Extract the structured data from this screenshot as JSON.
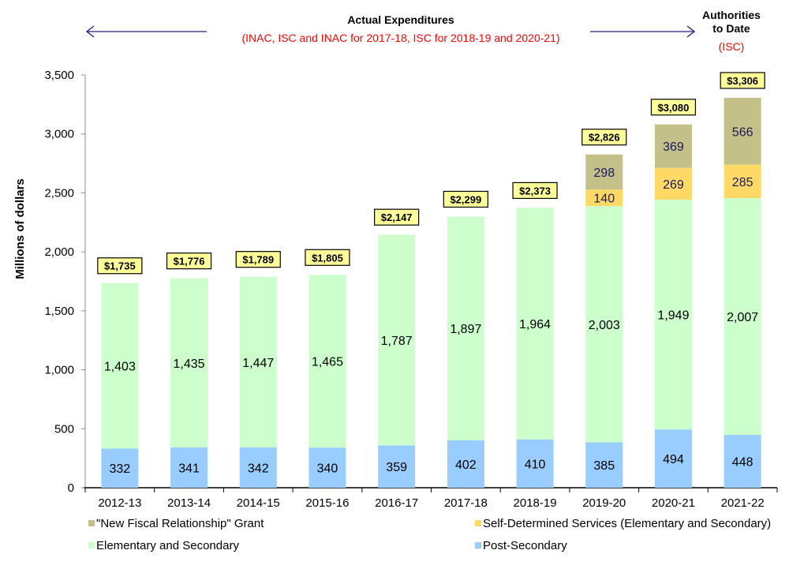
{
  "chart_data": {
    "type": "bar",
    "stacked": true,
    "title": "",
    "xlabel": "",
    "ylabel": "Millions of dollars",
    "ylim": [
      0,
      3500
    ],
    "yticks": [
      0,
      500,
      1000,
      1500,
      2000,
      2500,
      3000,
      3500
    ],
    "ytick_labels": [
      "0",
      "500",
      "1,000",
      "1,500",
      "2,000",
      "2,500",
      "3,000",
      "3,500"
    ],
    "grid": false,
    "legend_position": "bottom",
    "categories": [
      "2012-13",
      "2013-14",
      "2014-15",
      "2015-16",
      "2016-17",
      "2017-18",
      "2018-19",
      "2019-20",
      "2020-21",
      "2021-22"
    ],
    "series": [
      {
        "name": "Post-Secondary",
        "color": "#99CCFF",
        "values": [
          332,
          341,
          342,
          340,
          359,
          402,
          410,
          385,
          494,
          448
        ],
        "labels": [
          "332",
          "341",
          "342",
          "340",
          "359",
          "402",
          "410",
          "385",
          "494",
          "448"
        ]
      },
      {
        "name": "Elementary and Secondary",
        "color": "#CCFFCC",
        "values": [
          1403,
          1435,
          1447,
          1465,
          1787,
          1897,
          1964,
          2003,
          1949,
          2007
        ],
        "labels": [
          "1,403",
          "1,435",
          "1,447",
          "1,465",
          "1,787",
          "1,897",
          "1,964",
          "2,003",
          "1,949",
          "2,007"
        ]
      },
      {
        "name": "Self-Determined Services (Elementary and Secondary)",
        "color": "#FFD966",
        "values": [
          0,
          0,
          0,
          0,
          0,
          0,
          0,
          140,
          269,
          285
        ],
        "labels": [
          "",
          "",
          "",
          "",
          "",
          "",
          "",
          "140",
          "269",
          "285"
        ]
      },
      {
        "name": "\"New Fiscal Relationship\" Grant",
        "color": "#C4C08A",
        "values": [
          0,
          0,
          0,
          0,
          0,
          0,
          0,
          298,
          369,
          566
        ],
        "labels": [
          "",
          "",
          "",
          "",
          "",
          "",
          "",
          "298",
          "369",
          "566"
        ]
      }
    ],
    "totals": [
      1735,
      1776,
      1789,
      1805,
      2147,
      2299,
      2373,
      2826,
      3080,
      3306
    ],
    "total_labels": [
      "$1,735",
      "$1,776",
      "$1,789",
      "$1,805",
      "$2,147",
      "$2,299",
      "$2,373",
      "$2,826",
      "$3,080",
      "$3,306"
    ],
    "total_box_color": "#FFFF99",
    "legend": [
      {
        "name": "\"New Fiscal Relationship\" Grant",
        "color": "#C4C08A"
      },
      {
        "name": "Self-Determined Services (Elementary and Secondary)",
        "color": "#FFD966"
      },
      {
        "name": "Elementary and Secondary",
        "color": "#CCFFCC"
      },
      {
        "name": "Post-Secondary",
        "color": "#99CCFF"
      }
    ],
    "annotations": {
      "actual_title": "Actual Expenditures",
      "actual_subtitle": "(INAC, ISC and INAC for 2017-18, ISC for 2018-19 and 2020-21)",
      "authorities_line1": "Authorities",
      "authorities_line2": "to Date",
      "authorities_subtitle": "(ISC)",
      "subtitle_color": "#FF0000",
      "arrow_color": "#1F1F7A"
    }
  }
}
